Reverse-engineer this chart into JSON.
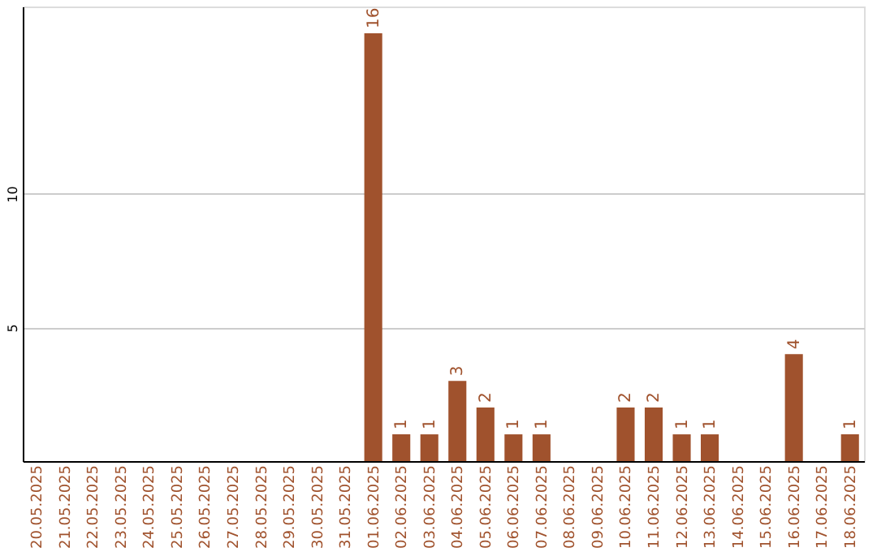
{
  "chart_data": {
    "type": "bar",
    "categories": [
      "20.05.2025",
      "21.05.2025",
      "22.05.2025",
      "23.05.2025",
      "24.05.2025",
      "25.05.2025",
      "26.05.2025",
      "27.05.2025",
      "28.05.2025",
      "29.05.2025",
      "30.05.2025",
      "31.05.2025",
      "01.06.2025",
      "02.06.2025",
      "03.06.2025",
      "04.06.2025",
      "05.06.2025",
      "06.06.2025",
      "07.06.2025",
      "08.06.2025",
      "09.06.2025",
      "10.06.2025",
      "11.06.2025",
      "12.06.2025",
      "13.06.2025",
      "14.06.2025",
      "15.06.2025",
      "16.06.2025",
      "17.06.2025",
      "18.06.2025"
    ],
    "values": [
      0,
      0,
      0,
      0,
      0,
      0,
      0,
      0,
      0,
      0,
      0,
      0,
      16,
      1,
      1,
      3,
      2,
      1,
      1,
      0,
      0,
      2,
      2,
      1,
      1,
      0,
      0,
      4,
      0,
      1
    ],
    "value_labels": [
      null,
      null,
      null,
      null,
      null,
      null,
      null,
      null,
      null,
      null,
      null,
      null,
      "16",
      "1",
      "1",
      "3",
      "2",
      "1",
      "1",
      null,
      null,
      "2",
      "2",
      "1",
      "1",
      null,
      null,
      "4",
      null,
      "1"
    ],
    "color": "#a0522d",
    "ylim": [
      0,
      17
    ],
    "yticks": [
      5,
      10
    ],
    "grid": "y"
  }
}
